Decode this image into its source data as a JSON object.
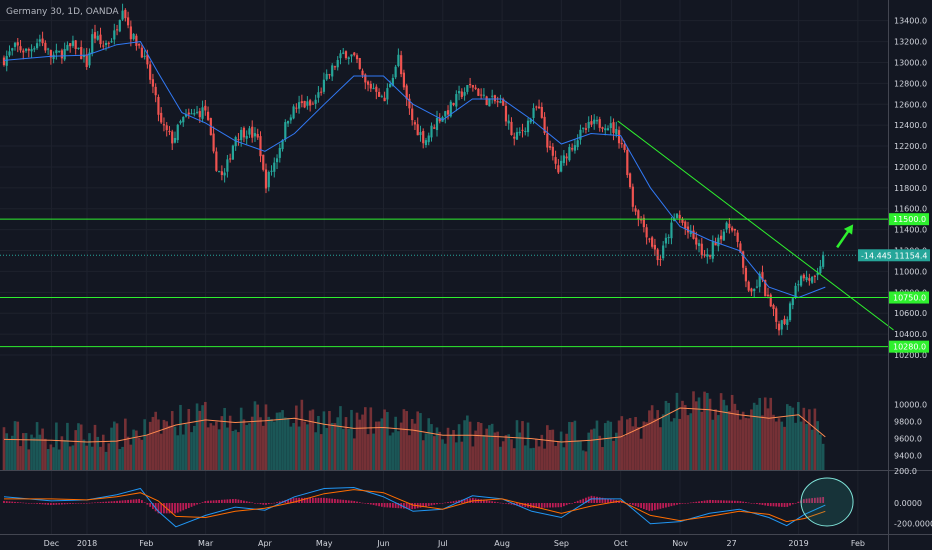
{
  "title": "Germany 30, 1D, OANDA",
  "chart_data": {
    "type": "candlestick",
    "title": "Germany 30, 1D, OANDA",
    "xaxis": {
      "range_months": [
        "2017-12",
        "2019-02"
      ],
      "ticks": [
        {
          "label": "Dec",
          "m": -0.6
        },
        {
          "label": "2018",
          "m": 0
        },
        {
          "label": "Feb",
          "m": 1
        },
        {
          "label": "Mar",
          "m": 2
        },
        {
          "label": "Apr",
          "m": 3
        },
        {
          "label": "May",
          "m": 4
        },
        {
          "label": "Jun",
          "m": 5
        },
        {
          "label": "Jul",
          "m": 6
        },
        {
          "label": "Aug",
          "m": 7
        },
        {
          "label": "Sep",
          "m": 8
        },
        {
          "label": "Oct",
          "m": 9
        },
        {
          "label": "Nov",
          "m": 10
        },
        {
          "label": "27",
          "m": 10.87
        },
        {
          "label": "2019",
          "m": 12
        },
        {
          "label": "Feb",
          "m": 13
        }
      ]
    },
    "price_axis": {
      "ylim": [
        10200,
        13550
      ],
      "ticks": [
        "13400.0",
        "13200.0",
        "13000.0",
        "12800.0",
        "12600.0",
        "12400.0",
        "12200.0",
        "12000.0",
        "11800.0",
        "11600.0",
        "11400.0",
        "11200.0",
        "11000.0",
        "10800.0",
        "10600.0",
        "10400.0",
        "10200.0"
      ]
    },
    "price_path": [
      [
        -1.4,
        13030
      ],
      [
        -1.2,
        13150
      ],
      [
        -1.0,
        13100
      ],
      [
        -0.8,
        13230
      ],
      [
        -0.6,
        13050
      ],
      [
        -0.4,
        13100
      ],
      [
        -0.2,
        13170
      ],
      [
        0,
        12980
      ],
      [
        0.1,
        13280
      ],
      [
        0.25,
        13150
      ],
      [
        0.45,
        13250
      ],
      [
        0.6,
        13550
      ],
      [
        0.75,
        13250
      ],
      [
        0.9,
        13150
      ],
      [
        1.1,
        12780
      ],
      [
        1.25,
        12400
      ],
      [
        1.45,
        12250
      ],
      [
        1.6,
        12450
      ],
      [
        1.8,
        12500
      ],
      [
        2.0,
        12550
      ],
      [
        2.15,
        12050
      ],
      [
        2.3,
        11880
      ],
      [
        2.5,
        12300
      ],
      [
        2.7,
        12350
      ],
      [
        2.9,
        12250
      ],
      [
        3.0,
        11820
      ],
      [
        3.2,
        12100
      ],
      [
        3.4,
        12500
      ],
      [
        3.6,
        12600
      ],
      [
        3.8,
        12580
      ],
      [
        4.0,
        12800
      ],
      [
        4.15,
        12950
      ],
      [
        4.35,
        13100
      ],
      [
        4.5,
        13050
      ],
      [
        4.7,
        12780
      ],
      [
        4.9,
        12750
      ],
      [
        5.0,
        12600
      ],
      [
        5.1,
        12800
      ],
      [
        5.25,
        13050
      ],
      [
        5.35,
        12700
      ],
      [
        5.5,
        12420
      ],
      [
        5.7,
        12250
      ],
      [
        5.9,
        12450
      ],
      [
        6.1,
        12550
      ],
      [
        6.3,
        12700
      ],
      [
        6.5,
        12780
      ],
      [
        6.7,
        12650
      ],
      [
        6.9,
        12620
      ],
      [
        7.0,
        12600
      ],
      [
        7.2,
        12250
      ],
      [
        7.4,
        12400
      ],
      [
        7.6,
        12580
      ],
      [
        7.8,
        12150
      ],
      [
        7.95,
        11960
      ],
      [
        8.1,
        12150
      ],
      [
        8.3,
        12300
      ],
      [
        8.5,
        12400
      ],
      [
        8.75,
        12420
      ],
      [
        8.9,
        12350
      ],
      [
        9.05,
        12200
      ],
      [
        9.2,
        11650
      ],
      [
        9.35,
        11480
      ],
      [
        9.5,
        11300
      ],
      [
        9.65,
        11100
      ],
      [
        9.8,
        11350
      ],
      [
        9.95,
        11550
      ],
      [
        10.1,
        11400
      ],
      [
        10.3,
        11250
      ],
      [
        10.45,
        11100
      ],
      [
        10.6,
        11300
      ],
      [
        10.75,
        11400
      ],
      [
        10.9,
        11450
      ],
      [
        11.05,
        11050
      ],
      [
        11.2,
        10750
      ],
      [
        11.35,
        10950
      ],
      [
        11.5,
        10700
      ],
      [
        11.65,
        10480
      ],
      [
        11.8,
        10550
      ],
      [
        11.95,
        10900
      ],
      [
        12.1,
        10950
      ],
      [
        12.3,
        10900
      ],
      [
        12.45,
        11154
      ]
    ],
    "moving_average": [
      [
        -1.4,
        13020
      ],
      [
        -0.6,
        13060
      ],
      [
        0,
        13070
      ],
      [
        0.5,
        13170
      ],
      [
        0.9,
        13200
      ],
      [
        1.2,
        12900
      ],
      [
        1.6,
        12520
      ],
      [
        2.0,
        12420
      ],
      [
        2.5,
        12250
      ],
      [
        3.0,
        12150
      ],
      [
        3.5,
        12320
      ],
      [
        4.0,
        12600
      ],
      [
        4.5,
        12870
      ],
      [
        5.0,
        12870
      ],
      [
        5.5,
        12600
      ],
      [
        6.0,
        12450
      ],
      [
        6.5,
        12650
      ],
      [
        7.0,
        12650
      ],
      [
        7.5,
        12450
      ],
      [
        8.0,
        12220
      ],
      [
        8.5,
        12320
      ],
      [
        9.0,
        12300
      ],
      [
        9.5,
        11800
      ],
      [
        10.0,
        11430
      ],
      [
        10.5,
        11300
      ],
      [
        11.0,
        11200
      ],
      [
        11.5,
        10850
      ],
      [
        12.0,
        10750
      ],
      [
        12.45,
        10850
      ]
    ],
    "horizontal_levels": [
      {
        "label": "11500.0",
        "value": 11500,
        "color": "#2ef02e"
      },
      {
        "label": "10750.0",
        "value": 10750,
        "color": "#2ef02e"
      },
      {
        "label": "10280.0",
        "value": 10280,
        "color": "#2ef02e"
      }
    ],
    "last_price": {
      "change": "-14.445",
      "price": "11154.4",
      "value": 11154.4
    },
    "trendline": {
      "start": {
        "m": 8.95,
        "value": 12440
      },
      "end": {
        "m": 13.6,
        "value": 10440
      }
    },
    "arrow": {
      "start": {
        "m": 12.65,
        "value": 11230
      },
      "end": {
        "m": 12.92,
        "value": 11450
      }
    },
    "volume": {
      "axis_ticks": [
        "10000.0",
        "9800.0",
        "9600.0",
        "9400.0"
      ],
      "ylim": [
        9230,
        10290
      ],
      "avg": [
        [
          -1.4,
          9590
        ],
        [
          -0.6,
          9580
        ],
        [
          0,
          9560
        ],
        [
          0.5,
          9570
        ],
        [
          1.0,
          9640
        ],
        [
          1.5,
          9760
        ],
        [
          2.0,
          9820
        ],
        [
          2.5,
          9790
        ],
        [
          3.0,
          9810
        ],
        [
          3.5,
          9840
        ],
        [
          4.0,
          9770
        ],
        [
          4.5,
          9720
        ],
        [
          5.0,
          9730
        ],
        [
          5.5,
          9700
        ],
        [
          6.0,
          9640
        ],
        [
          6.5,
          9640
        ],
        [
          7.0,
          9620
        ],
        [
          7.5,
          9600
        ],
        [
          8.0,
          9560
        ],
        [
          8.5,
          9580
        ],
        [
          9.0,
          9620
        ],
        [
          9.5,
          9780
        ],
        [
          10.0,
          9960
        ],
        [
          10.5,
          9940
        ],
        [
          11.0,
          9880
        ],
        [
          11.5,
          9840
        ],
        [
          12.0,
          9880
        ],
        [
          12.45,
          9620
        ]
      ]
    },
    "macd": {
      "axis_ticks": [
        "200.0",
        "0.0000",
        "-200.0000"
      ],
      "ylim": [
        -300,
        300
      ],
      "macd_line": [
        [
          -1.4,
          60
        ],
        [
          -0.6,
          20
        ],
        [
          0,
          30
        ],
        [
          0.5,
          80
        ],
        [
          0.9,
          140
        ],
        [
          1.2,
          -80
        ],
        [
          1.5,
          -230
        ],
        [
          2.0,
          -120
        ],
        [
          2.5,
          -40
        ],
        [
          3.0,
          -70
        ],
        [
          3.5,
          60
        ],
        [
          4.0,
          140
        ],
        [
          4.5,
          150
        ],
        [
          5.0,
          60
        ],
        [
          5.5,
          -80
        ],
        [
          6.0,
          -60
        ],
        [
          6.5,
          70
        ],
        [
          7.0,
          40
        ],
        [
          7.5,
          -80
        ],
        [
          8.0,
          -140
        ],
        [
          8.5,
          40
        ],
        [
          9.0,
          40
        ],
        [
          9.5,
          -200
        ],
        [
          10.0,
          -180
        ],
        [
          10.5,
          -100
        ],
        [
          11.0,
          -60
        ],
        [
          11.5,
          -140
        ],
        [
          11.8,
          -220
        ],
        [
          12.1,
          -110
        ],
        [
          12.45,
          -20
        ]
      ],
      "signal_line": [
        [
          -1.4,
          40
        ],
        [
          -0.6,
          40
        ],
        [
          0,
          30
        ],
        [
          0.5,
          60
        ],
        [
          0.9,
          100
        ],
        [
          1.2,
          20
        ],
        [
          1.5,
          -130
        ],
        [
          2.0,
          -140
        ],
        [
          2.5,
          -80
        ],
        [
          3.0,
          -50
        ],
        [
          3.5,
          10
        ],
        [
          4.0,
          90
        ],
        [
          4.5,
          130
        ],
        [
          5.0,
          100
        ],
        [
          5.5,
          -20
        ],
        [
          6.0,
          -60
        ],
        [
          6.5,
          20
        ],
        [
          7.0,
          40
        ],
        [
          7.5,
          -30
        ],
        [
          8.0,
          -100
        ],
        [
          8.5,
          -30
        ],
        [
          9.0,
          20
        ],
        [
          9.5,
          -120
        ],
        [
          10.0,
          -170
        ],
        [
          10.5,
          -130
        ],
        [
          11.0,
          -80
        ],
        [
          11.5,
          -110
        ],
        [
          11.8,
          -180
        ],
        [
          12.1,
          -150
        ],
        [
          12.45,
          -80
        ]
      ],
      "highlight": {
        "m": 12.48,
        "value": 10
      }
    }
  },
  "colors": {
    "background": "#131722",
    "grid": "#1e222d",
    "up": "#26a69a",
    "down": "#ef5350",
    "ma": "#3179f5",
    "level": "#2ef02e",
    "vol_avg": "#ff8a50",
    "macd": "#2196f3",
    "signal": "#ff6d00",
    "hist_pos": "#e91e63",
    "axis_text": "#d1d4dc"
  }
}
